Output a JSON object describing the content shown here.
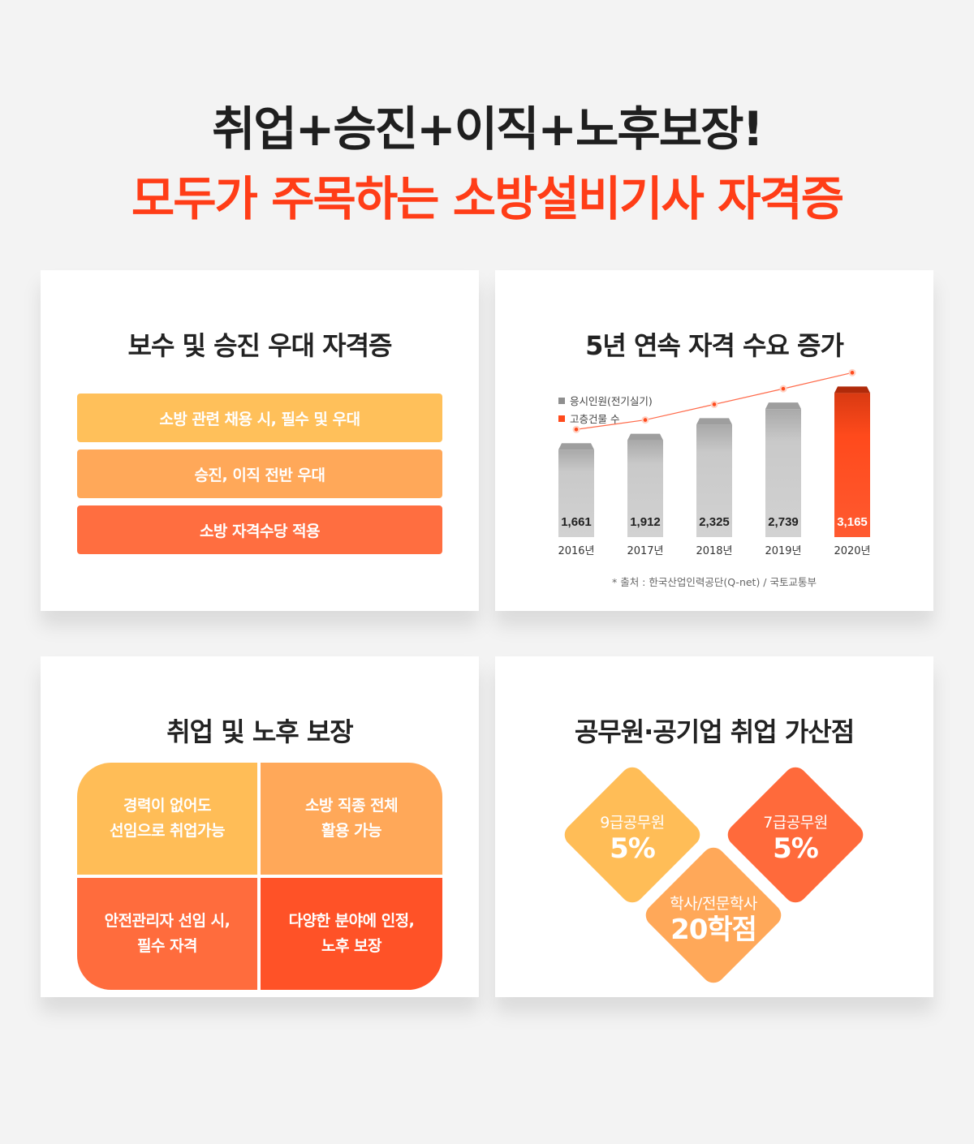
{
  "headline": {
    "line1": "취업+승진+이직+노후보장!",
    "line2": "모두가 주목하는 소방설비기사 자격증"
  },
  "card1": {
    "title": "보수 및 승진 우대 자격증",
    "rows": [
      "소방 관련 채용 시, 필수 및 우대",
      "승진, 이직 전반 우대",
      "소방 자격수당 적용"
    ]
  },
  "card2": {
    "title": "5년 연속 자격 수요 증가",
    "source": "* 출처 : 한국산업인력공단(Q-net) / 국토교통부"
  },
  "chart_data": {
    "type": "bar",
    "categories": [
      "2016년",
      "2017년",
      "2018년",
      "2019년",
      "2020년"
    ],
    "series": [
      {
        "name": "응시인원(전기실기)",
        "values": [
          1661,
          1912,
          2325,
          2739,
          3165
        ],
        "labels": [
          "1,661",
          "1,912",
          "2,325",
          "2,739",
          "3,165"
        ]
      },
      {
        "name": "고층건물 수",
        "type": "line"
      }
    ],
    "colors": {
      "bar": "#c8c8c8",
      "highlight": "#ff4a1c",
      "line": "#ff6a4a"
    }
  },
  "card3": {
    "title": "취업 및 노후 보장",
    "cells": [
      {
        "line1": "경력이 없어도",
        "line2": "선임으로 취업가능"
      },
      {
        "line1": "소방 직종 전체",
        "line2": "활용 가능"
      },
      {
        "line1": "안전관리자 선임 시,",
        "line2": "필수 자격"
      },
      {
        "line1": "다양한 분야에 인정,",
        "line2": "노후 보장"
      }
    ]
  },
  "card4": {
    "title": "공무원·공기업 취업 가산점",
    "items": [
      {
        "label": "9급공무원",
        "value": "5%"
      },
      {
        "label": "7급공무원",
        "value": "5%"
      },
      {
        "label": "학사/전문학사",
        "value": "20학점"
      }
    ]
  },
  "colors": {
    "accent_red": "#ff3d17",
    "yellow": "#ffc05a",
    "light_orange": "#ffa859",
    "orange": "#ff6e40",
    "deep_orange": "#ff5227"
  }
}
